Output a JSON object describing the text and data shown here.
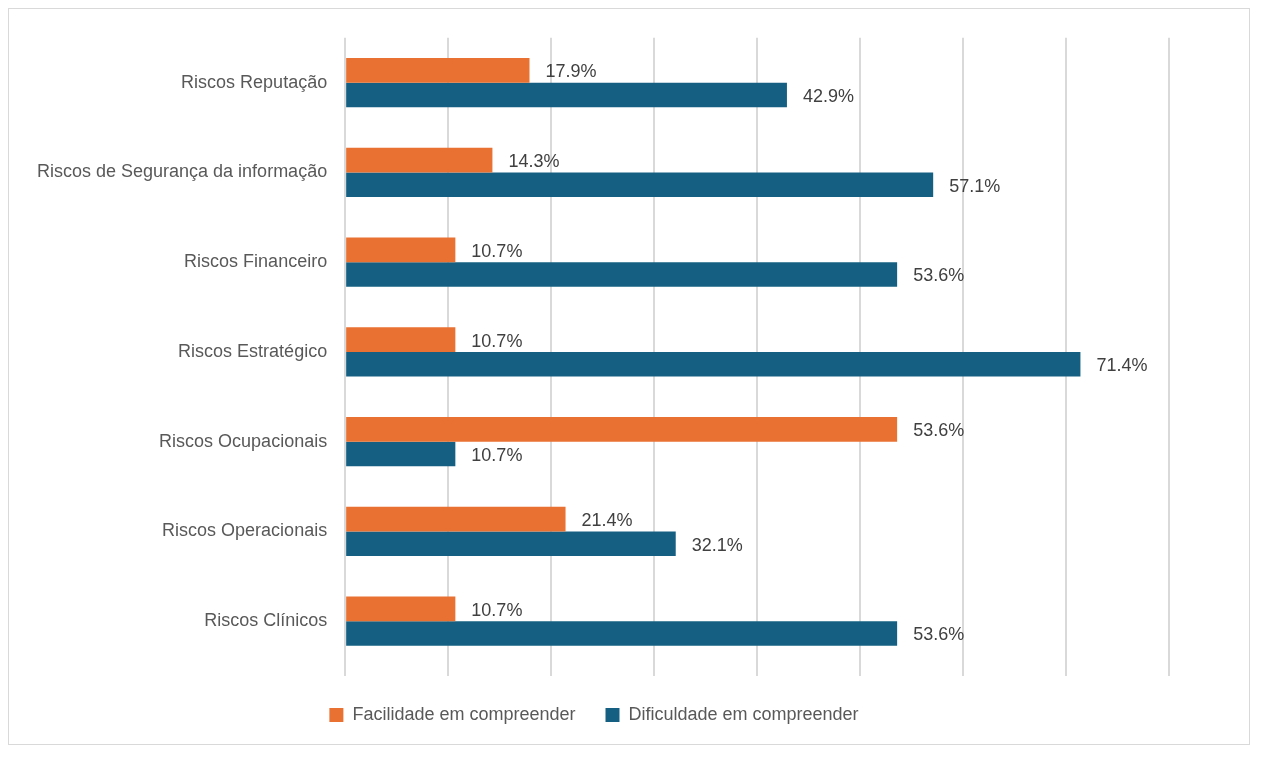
{
  "chart_data": {
    "type": "bar",
    "orientation": "horizontal",
    "categories": [
      "Riscos Reputação",
      "Riscos de Segurança da informação",
      "Riscos Financeiro",
      "Riscos Estratégico",
      "Riscos Ocupacionais",
      "Riscos Operacionais",
      "Riscos Clínicos"
    ],
    "series": [
      {
        "name": "Facilidade em compreender",
        "color": "#e97132",
        "values": [
          17.9,
          14.3,
          10.7,
          10.7,
          53.6,
          21.4,
          10.7
        ],
        "value_labels": [
          "17.9%",
          "14.3%",
          "10.7%",
          "10.7%",
          "53.6%",
          "21.4%",
          "10.7%"
        ]
      },
      {
        "name": "Dificuldade em compreender",
        "color": "#156082",
        "values": [
          42.9,
          57.1,
          53.6,
          71.4,
          10.7,
          32.1,
          53.6
        ],
        "value_labels": [
          "42.9%",
          "57.1%",
          "53.6%",
          "71.4%",
          "10.7%",
          "32.1%",
          "53.6%"
        ]
      }
    ],
    "xlim": [
      0,
      80
    ],
    "xticks": [
      {
        "value": 0,
        "label": null
      },
      {
        "value": 10,
        "label": null
      },
      {
        "value": 20,
        "label": null
      },
      {
        "value": 30,
        "label": null
      },
      {
        "value": 40,
        "label": null
      },
      {
        "value": 50,
        "label": null
      },
      {
        "value": 60,
        "label": null
      },
      {
        "value": 70,
        "label": null
      },
      {
        "value": 80,
        "label": null
      }
    ],
    "tick_labels": "y",
    "grid": "x",
    "legend": "bottom"
  }
}
